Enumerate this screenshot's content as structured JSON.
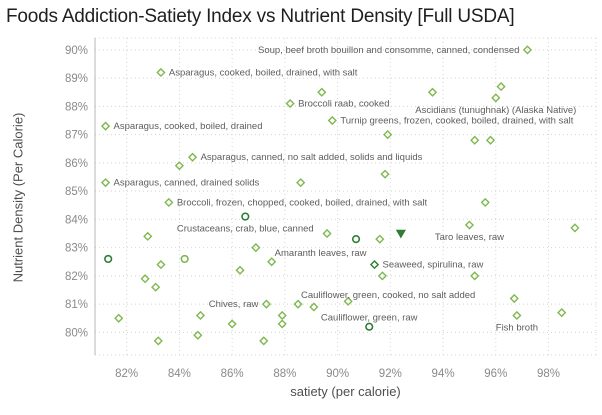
{
  "title": "Foods Addiction-Satiety Index vs Nutrient Density [Full USDA]",
  "chart_data": {
    "type": "scatter",
    "title": "Foods Addiction-Satiety Index vs Nutrient Density [Full USDA]",
    "xlabel": "satiety (per calorie)",
    "ylabel": "Nutrient Density (Per Calorie)",
    "x_tick_labels": [
      "82%",
      "84%",
      "86%",
      "88%",
      "90%",
      "92%",
      "94%",
      "96%",
      "98%"
    ],
    "y_tick_labels": [
      "90%",
      "89%",
      "88%",
      "87%",
      "86%",
      "85%",
      "84%",
      "83%",
      "82%",
      "81%",
      "80%"
    ],
    "xlim": [
      80.8,
      99.8
    ],
    "ylim": [
      79.2,
      90.42
    ],
    "grid": true,
    "legend": "none",
    "colors": {
      "marker_light": "#7eb84f",
      "marker_dark": "#2e7d33",
      "grid": "#d4d4d4",
      "axis_line": "#b7b7b7",
      "tick_text": "#8a8a8a",
      "axis_title_text": "#4e4e4e",
      "annotation_text": "#5d5d5d",
      "title_text": "#1f1f1f"
    },
    "points": [
      {
        "x": 97.2,
        "y": 90.0,
        "shape": "diamond",
        "tone": "light",
        "label": "Soup, beef broth bouillon and consomme, canned, condensed",
        "side": "left"
      },
      {
        "x": 83.3,
        "y": 89.2,
        "shape": "diamond",
        "tone": "light",
        "label": "Asparagus, cooked, boiled, drained, with salt",
        "side": "right"
      },
      {
        "x": 93.6,
        "y": 88.5,
        "shape": "diamond",
        "tone": "light"
      },
      {
        "x": 96.2,
        "y": 88.7,
        "shape": "diamond",
        "tone": "light"
      },
      {
        "x": 96.0,
        "y": 88.3,
        "shape": "diamond",
        "tone": "light",
        "label": "Ascidians (tunughnak) (Alaska Native)",
        "side": "below"
      },
      {
        "x": 88.2,
        "y": 88.1,
        "shape": "diamond",
        "tone": "light",
        "label": "Broccoli raab, cooked",
        "side": "right"
      },
      {
        "x": 89.4,
        "y": 88.5,
        "shape": "diamond",
        "tone": "light"
      },
      {
        "x": 81.2,
        "y": 87.3,
        "shape": "diamond",
        "tone": "light",
        "label": "Asparagus, cooked, boiled, drained",
        "side": "right"
      },
      {
        "x": 89.8,
        "y": 87.5,
        "shape": "diamond",
        "tone": "light",
        "label": "Turnip greens, frozen, cooked, boiled, drained, with salt",
        "side": "right"
      },
      {
        "x": 91.9,
        "y": 87.0,
        "shape": "diamond",
        "tone": "light"
      },
      {
        "x": 95.2,
        "y": 86.8,
        "shape": "diamond",
        "tone": "light"
      },
      {
        "x": 95.8,
        "y": 86.8,
        "shape": "diamond",
        "tone": "light"
      },
      {
        "x": 84.5,
        "y": 86.2,
        "shape": "diamond",
        "tone": "light",
        "label": "Asparagus, canned, no salt added, solids and liquids",
        "side": "right"
      },
      {
        "x": 84.0,
        "y": 85.9,
        "shape": "diamond",
        "tone": "light"
      },
      {
        "x": 81.2,
        "y": 85.3,
        "shape": "diamond",
        "tone": "light",
        "label": "Asparagus, canned, drained solids",
        "side": "right"
      },
      {
        "x": 88.6,
        "y": 85.3,
        "shape": "diamond",
        "tone": "light"
      },
      {
        "x": 91.8,
        "y": 85.6,
        "shape": "diamond",
        "tone": "light"
      },
      {
        "x": 83.6,
        "y": 84.6,
        "shape": "diamond",
        "tone": "light",
        "label": "Broccoli, frozen, chopped, cooked, boiled, drained, with salt",
        "side": "right"
      },
      {
        "x": 86.5,
        "y": 84.1,
        "shape": "circle",
        "tone": "dark",
        "label": "Crustaceans, crab, blue, canned",
        "side": "below"
      },
      {
        "x": 95.6,
        "y": 84.6,
        "shape": "diamond",
        "tone": "light"
      },
      {
        "x": 95.0,
        "y": 83.8,
        "shape": "diamond",
        "tone": "light",
        "label": "Taro leaves, raw",
        "side": "below"
      },
      {
        "x": 92.4,
        "y": 83.5,
        "shape": "triangle",
        "tone": "dark"
      },
      {
        "x": 90.7,
        "y": 83.3,
        "shape": "circle",
        "tone": "dark"
      },
      {
        "x": 91.6,
        "y": 83.3,
        "shape": "diamond",
        "tone": "light"
      },
      {
        "x": 99.0,
        "y": 83.7,
        "shape": "diamond",
        "tone": "light"
      },
      {
        "x": 89.6,
        "y": 83.5,
        "shape": "diamond",
        "tone": "light"
      },
      {
        "x": 86.9,
        "y": 83.0,
        "shape": "diamond",
        "tone": "light"
      },
      {
        "x": 82.8,
        "y": 83.4,
        "shape": "diamond",
        "tone": "light"
      },
      {
        "x": 81.3,
        "y": 82.6,
        "shape": "circle",
        "tone": "dark"
      },
      {
        "x": 87.5,
        "y": 82.5,
        "shape": "diamond",
        "tone": "light",
        "label": "Amaranth leaves, raw",
        "side": "above-right"
      },
      {
        "x": 83.3,
        "y": 82.4,
        "shape": "diamond",
        "tone": "light"
      },
      {
        "x": 84.2,
        "y": 82.6,
        "shape": "circle",
        "tone": "light"
      },
      {
        "x": 86.3,
        "y": 82.2,
        "shape": "diamond",
        "tone": "light"
      },
      {
        "x": 82.7,
        "y": 81.9,
        "shape": "diamond",
        "tone": "light"
      },
      {
        "x": 83.1,
        "y": 81.6,
        "shape": "diamond",
        "tone": "light"
      },
      {
        "x": 91.4,
        "y": 82.4,
        "shape": "diamond",
        "tone": "dark",
        "label": "Seaweed, spirulina, raw",
        "side": "right"
      },
      {
        "x": 91.7,
        "y": 82.0,
        "shape": "diamond",
        "tone": "light"
      },
      {
        "x": 95.2,
        "y": 82.0,
        "shape": "diamond",
        "tone": "light"
      },
      {
        "x": 87.3,
        "y": 81.0,
        "shape": "diamond",
        "tone": "light",
        "label": "Chives, raw",
        "side": "left"
      },
      {
        "x": 88.5,
        "y": 81.0,
        "shape": "diamond",
        "tone": "light",
        "label": "Cauliflower, green, cooked, no salt added",
        "side": "above-right"
      },
      {
        "x": 89.1,
        "y": 80.9,
        "shape": "diamond",
        "tone": "light"
      },
      {
        "x": 90.4,
        "y": 81.1,
        "shape": "diamond",
        "tone": "light"
      },
      {
        "x": 87.9,
        "y": 80.6,
        "shape": "diamond",
        "tone": "light"
      },
      {
        "x": 87.9,
        "y": 80.3,
        "shape": "diamond",
        "tone": "light"
      },
      {
        "x": 91.2,
        "y": 80.2,
        "shape": "circle",
        "tone": "dark",
        "label": "Cauliflower, green, raw",
        "side": "above"
      },
      {
        "x": 81.7,
        "y": 80.5,
        "shape": "diamond",
        "tone": "light"
      },
      {
        "x": 84.8,
        "y": 80.6,
        "shape": "diamond",
        "tone": "light"
      },
      {
        "x": 86.0,
        "y": 80.3,
        "shape": "diamond",
        "tone": "light"
      },
      {
        "x": 83.2,
        "y": 79.7,
        "shape": "diamond",
        "tone": "light"
      },
      {
        "x": 84.7,
        "y": 79.9,
        "shape": "diamond",
        "tone": "light"
      },
      {
        "x": 87.2,
        "y": 79.7,
        "shape": "diamond",
        "tone": "light"
      },
      {
        "x": 96.7,
        "y": 81.2,
        "shape": "diamond",
        "tone": "light"
      },
      {
        "x": 96.8,
        "y": 80.6,
        "shape": "diamond",
        "tone": "light",
        "label": "Fish broth",
        "side": "below"
      },
      {
        "x": 98.5,
        "y": 80.7,
        "shape": "diamond",
        "tone": "light"
      }
    ]
  }
}
